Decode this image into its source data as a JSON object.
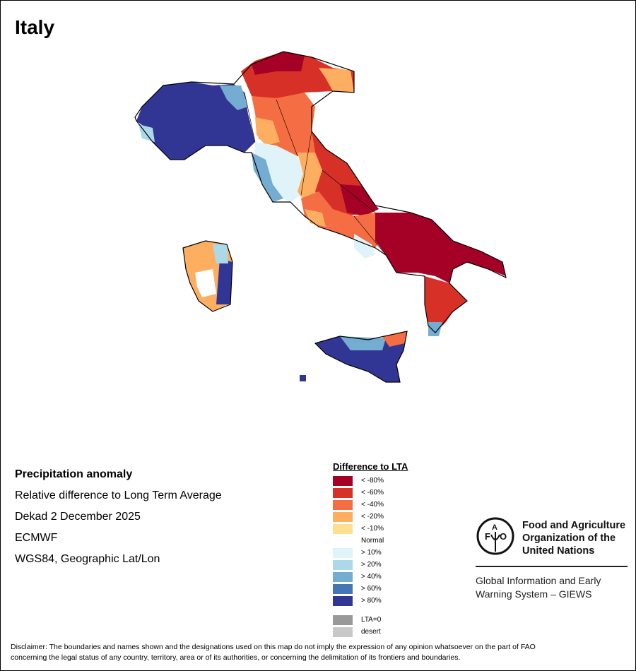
{
  "title": "Italy",
  "info": {
    "heading": "Precipitation anomaly",
    "line1": "Relative difference to Long Term Average",
    "line2": "Dekad 2 December 2025",
    "line3": "ECMWF",
    "line4": "WGS84, Geographic Lat/Lon"
  },
  "legend": {
    "title": "Difference to LTA",
    "items": [
      {
        "label": "< -80%",
        "color": "#a50026"
      },
      {
        "label": "< -60%",
        "color": "#d73027"
      },
      {
        "label": "< -40%",
        "color": "#f46d43"
      },
      {
        "label": "< -20%",
        "color": "#fdae61"
      },
      {
        "label": "< -10%",
        "color": "#fee090"
      },
      {
        "label": "Normal",
        "color": "#ffffff"
      },
      {
        "label": "> 10%",
        "color": "#e0f3f8"
      },
      {
        "label": "> 20%",
        "color": "#abd9e9"
      },
      {
        "label": "> 40%",
        "color": "#74add1"
      },
      {
        "label": "> 60%",
        "color": "#4575b4"
      },
      {
        "label": "> 80%",
        "color": "#313695"
      }
    ],
    "extra": [
      {
        "label": "LTA=0",
        "color": "#999999"
      },
      {
        "label": "desert",
        "color": "#c8c8c8"
      }
    ]
  },
  "logo": {
    "org_line1": "Food and Agriculture",
    "org_line2": "Organization of the",
    "org_line3": "United Nations",
    "emblem_text": "FAO FIAT PANIS",
    "giews_line1": "Global Information and Early",
    "giews_line2": "Warning System – GIEWS"
  },
  "disclaimer": {
    "line1": "Disclaimer: The boundaries and names shown and the designations used on this map do not imply the expression of any opinion whatsoever on the part of FAO",
    "line2": "concerning the legal status of any country, territory, area or of its authorities, or concerning the delimitation of its frontiers and boundaries."
  }
}
